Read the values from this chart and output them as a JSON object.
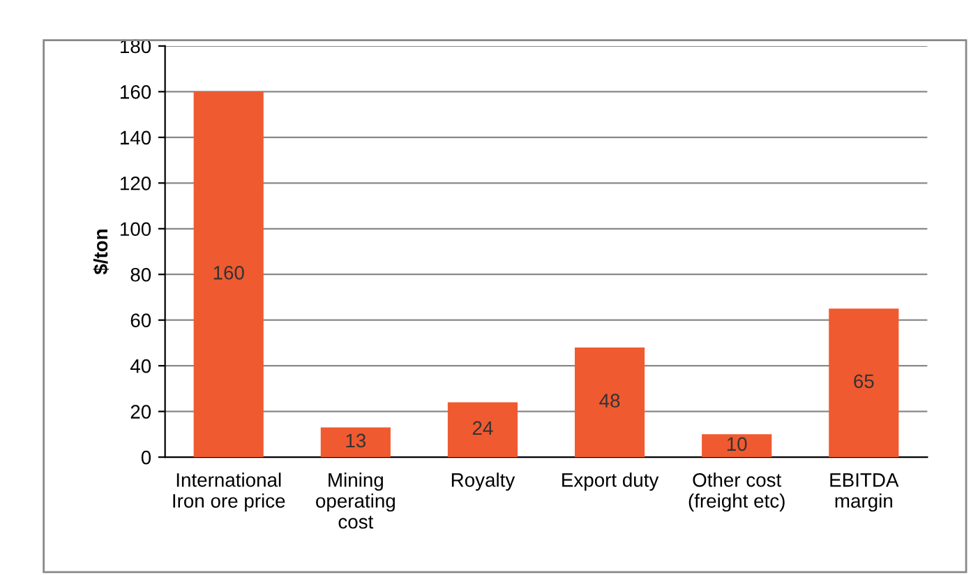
{
  "chart_data": {
    "type": "bar",
    "ylabel": "$/ton",
    "categories": [
      "International\nIron ore price",
      "Mining\noperating\ncost",
      "Royalty",
      "Export duty",
      "Other cost\n(freight etc)",
      "EBITDA\nmargin"
    ],
    "values": [
      160,
      13,
      24,
      48,
      10,
      65
    ],
    "color": "#f05a30",
    "ylim": [
      0,
      180
    ],
    "yticks": [
      0,
      20,
      40,
      60,
      80,
      100,
      120,
      140,
      160,
      180
    ],
    "grid": "y",
    "data_labels": true
  }
}
